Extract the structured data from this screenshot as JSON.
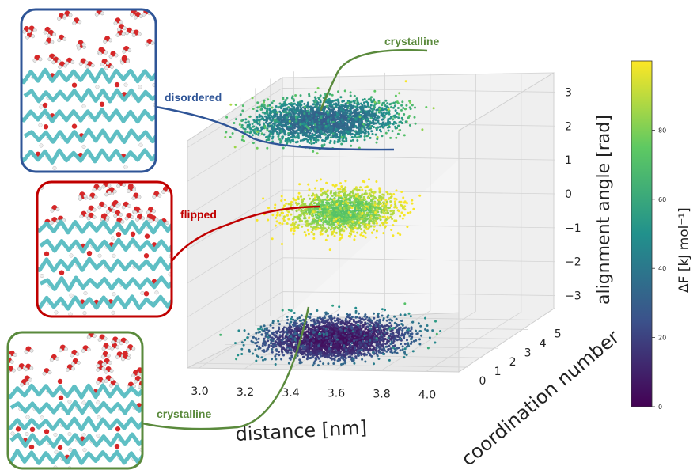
{
  "chart_data": {
    "type": "scatter",
    "subtype": "3d-free-energy-landscape",
    "axes": {
      "x": {
        "label": "distance [nm]",
        "ticks": [
          "3.0",
          "3.2",
          "3.4",
          "3.6",
          "3.8",
          "4.0"
        ],
        "lim": [
          2.95,
          4.15
        ]
      },
      "y": {
        "label": "coordination number",
        "ticks": [
          "0",
          "1",
          "2",
          "3",
          "4",
          "5"
        ],
        "lim": [
          -0.5,
          5.8
        ]
      },
      "z": {
        "label": "alignment angle [rad]",
        "ticks": [
          "3",
          "2",
          "1",
          "0",
          "−1",
          "−2",
          "−3"
        ],
        "lim": [
          -3.5,
          3.5
        ]
      }
    },
    "colorbar": {
      "label": "ΔF [kJ mol⁻¹]",
      "ticks": [
        "0",
        "20",
        "40",
        "60",
        "80"
      ],
      "lim": [
        0,
        100
      ],
      "colormap": "viridis"
    },
    "grid": true,
    "basins": [
      {
        "name": "crystalline",
        "distance": 3.5,
        "coordination": 1.0,
        "angle": -3.0,
        "min_dF": 2
      },
      {
        "name": "disordered",
        "distance": 3.3,
        "coordination": 3.2,
        "angle": 2.8,
        "min_dF": 28
      },
      {
        "name": "flipped",
        "distance": 3.4,
        "coordination": 3.0,
        "angle": 0.2,
        "min_dF": 70
      }
    ]
  },
  "annotations": [
    {
      "label": "crystalline",
      "color": "#5a8a3c"
    },
    {
      "label": "disordered",
      "color": "#2f5597"
    },
    {
      "label": "flipped",
      "color": "#c00000"
    },
    {
      "label": "crystalline",
      "color": "#5a8a3c"
    }
  ],
  "insets": [
    {
      "frame_color": "#2f5597",
      "depicts": "disordered-snapshot"
    },
    {
      "frame_color": "#c00000",
      "depicts": "flipped-snapshot"
    },
    {
      "frame_color": "#5a8a3c",
      "depicts": "crystalline-snapshot"
    }
  ]
}
